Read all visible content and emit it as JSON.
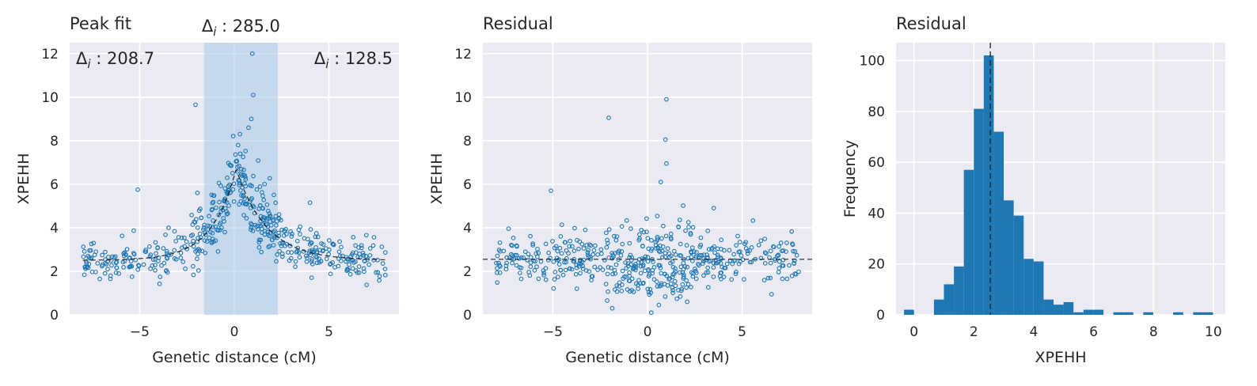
{
  "chart_data": [
    {
      "type": "scatter",
      "title": "Peak fit",
      "xlabel": "Genetic distance (cM)",
      "ylabel": "XPEHH",
      "xlim": [
        -8.7,
        8.7
      ],
      "ylim": [
        0,
        12.5
      ],
      "xticks": [
        -5,
        0,
        5
      ],
      "yticks": [
        0,
        2,
        4,
        6,
        8,
        10,
        12
      ],
      "grid": true,
      "highlight_span": [
        -1.6,
        2.3
      ],
      "annotations": [
        {
          "text": "Δi : 208.7",
          "position": "top-left"
        },
        {
          "text": "Δi : 285.0",
          "position": "above-span"
        },
        {
          "text": "Δi : 128.5",
          "position": "top-right"
        }
      ],
      "fit_curve": {
        "style": "dashed",
        "baseline": 2.5,
        "peak_x": 0.1,
        "peak_y": 6.7,
        "decay_left": 1.3,
        "decay_right": 1.6
      },
      "scatter_summary": {
        "n_points": 520,
        "x_range": [
          -8,
          8
        ]
      },
      "outlier_points": [
        {
          "x": 0.95,
          "y": 12.0
        },
        {
          "x": 1.0,
          "y": 10.1
        },
        {
          "x": -2.05,
          "y": 9.65
        },
        {
          "x": 0.9,
          "y": 9.0
        },
        {
          "x": 0.75,
          "y": 8.6
        },
        {
          "x": 0.3,
          "y": 8.3
        },
        {
          "x": 0.2,
          "y": 7.8
        },
        {
          "x": -5.1,
          "y": 5.75
        },
        {
          "x": -1.95,
          "y": 5.6
        },
        {
          "x": 4.0,
          "y": 5.15
        }
      ]
    },
    {
      "type": "scatter",
      "title": "Residual",
      "xlabel": "Genetic distance (cM)",
      "ylabel": "XPEHH",
      "xlim": [
        -8.7,
        8.7
      ],
      "ylim": [
        0,
        12.5
      ],
      "xticks": [
        -5,
        0,
        5
      ],
      "yticks": [
        0,
        2,
        4,
        6,
        8,
        10,
        12
      ],
      "grid": true,
      "reference_line": {
        "y": 2.55,
        "style": "dashed"
      },
      "scatter_summary": {
        "n_points": 520,
        "x_range": [
          -8,
          8
        ]
      },
      "outlier_points": [
        {
          "x": 1.0,
          "y": 9.9
        },
        {
          "x": -2.05,
          "y": 9.05
        },
        {
          "x": 0.95,
          "y": 8.05
        },
        {
          "x": 1.0,
          "y": 6.95
        },
        {
          "x": 0.7,
          "y": 6.1
        },
        {
          "x": -5.1,
          "y": 5.7
        },
        {
          "x": 3.5,
          "y": 4.9
        },
        {
          "x": 0.6,
          "y": 0.45
        },
        {
          "x": 0.2,
          "y": 0.1
        }
      ]
    },
    {
      "type": "bar",
      "subtype": "histogram",
      "title": "Residual",
      "xlabel": "XPEHH",
      "ylabel": "Frequency",
      "xlim": [
        -0.6,
        10.4
      ],
      "ylim": [
        0,
        107
      ],
      "xticks": [
        0,
        2,
        4,
        6,
        8,
        10
      ],
      "yticks": [
        0,
        20,
        40,
        60,
        80,
        100
      ],
      "grid": true,
      "bin_width": 0.333,
      "bin_start": -0.333,
      "values": [
        2,
        0,
        0,
        6,
        12,
        19,
        57,
        81,
        102,
        72,
        45,
        39,
        22,
        21,
        6,
        4,
        5,
        1,
        2,
        2,
        0,
        1,
        1,
        0,
        1,
        0,
        0,
        1,
        0,
        1,
        1
      ],
      "reference_line": {
        "x": 2.55,
        "style": "dashed"
      }
    }
  ]
}
